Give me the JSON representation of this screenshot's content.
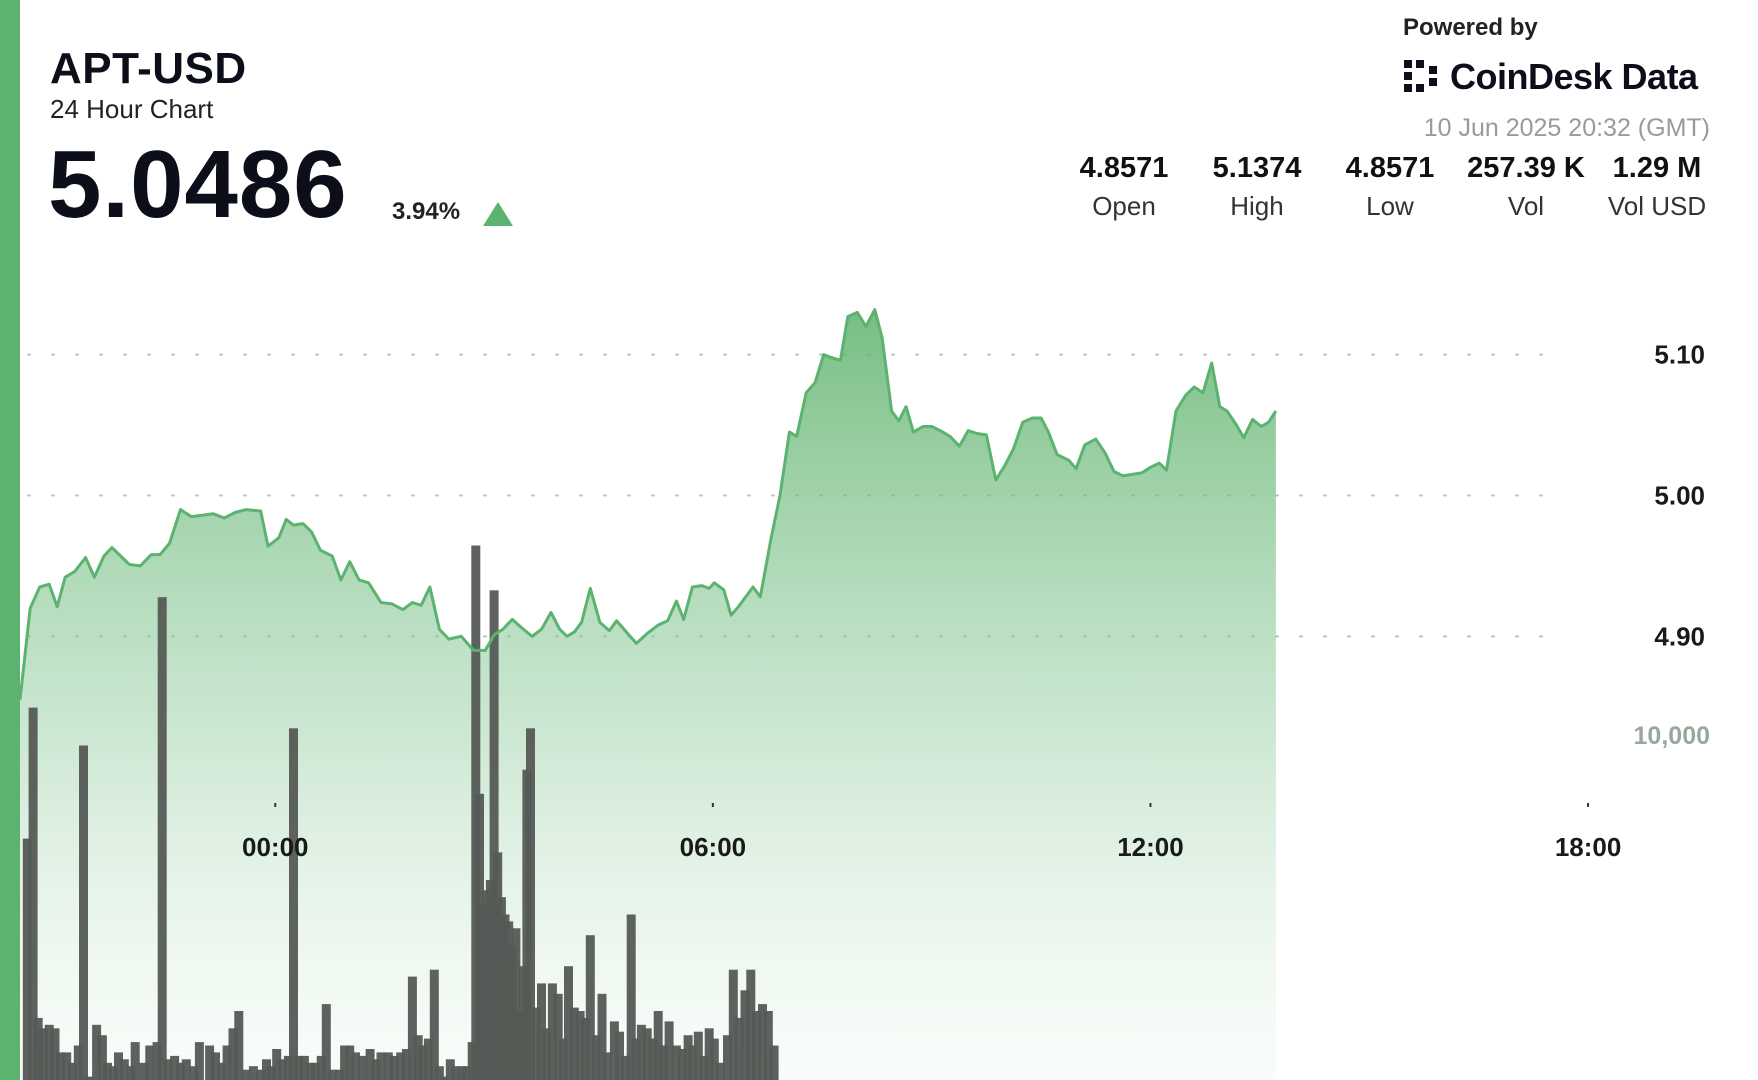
{
  "header": {
    "symbol": "APT-USD",
    "subtitle": "24 Hour Chart",
    "price": "5.0486",
    "change": "3.94%"
  },
  "branding": {
    "powered_by": "Powered by",
    "name": "CoinDesk Data",
    "timestamp": "10 Jun 2025 20:32 (GMT)"
  },
  "stats": [
    {
      "value": "4.8571",
      "label": "Open"
    },
    {
      "value": "5.1374",
      "label": "High"
    },
    {
      "value": "4.8571",
      "label": "Low"
    },
    {
      "value": "257.39 K",
      "label": "Vol"
    },
    {
      "value": "1.29 M",
      "label": "Vol USD"
    }
  ],
  "colors": {
    "accent": "#5cb36f",
    "line": "#5cb36f",
    "fill_top": "#5fb36e",
    "volume_bar": "#555a55",
    "text": "#111111",
    "muted": "#9a9a9a"
  },
  "chart_data": {
    "type": "area",
    "price_axis": {
      "range": [
        4.82,
        5.175
      ],
      "ticks": [
        4.9,
        5.0,
        5.1
      ],
      "tick_labels": [
        "4.90",
        "5.00",
        "5.10"
      ],
      "side": "right",
      "grid": "dotted"
    },
    "volume_axis": {
      "ticks": [
        10000
      ],
      "tick_labels": [
        "10,000"
      ],
      "max": 14500
    },
    "x_axis": {
      "ticks": [
        "00:00",
        "06:00",
        "12:00",
        "18:00"
      ],
      "tick_positions": [
        3,
        9,
        15,
        21
      ],
      "range": [
        -0.5,
        23.33
      ]
    },
    "price_series": [
      [
        -0.5,
        4.855
      ],
      [
        -0.36,
        4.92
      ],
      [
        -0.23,
        4.935
      ],
      [
        -0.1,
        4.937
      ],
      [
        0.01,
        4.921
      ],
      [
        0.12,
        4.942
      ],
      [
        0.25,
        4.946
      ],
      [
        0.4,
        4.956
      ],
      [
        0.52,
        4.942
      ],
      [
        0.65,
        4.957
      ],
      [
        0.76,
        4.963
      ],
      [
        0.88,
        4.957
      ],
      [
        1.0,
        4.951
      ],
      [
        1.15,
        4.95
      ],
      [
        1.3,
        4.958
      ],
      [
        1.42,
        4.958
      ],
      [
        1.55,
        4.966
      ],
      [
        1.7,
        4.99
      ],
      [
        1.85,
        4.985
      ],
      [
        2.0,
        4.986
      ],
      [
        2.15,
        4.987
      ],
      [
        2.3,
        4.984
      ],
      [
        2.45,
        4.988
      ],
      [
        2.6,
        4.99
      ],
      [
        2.8,
        4.989
      ],
      [
        2.9,
        4.964
      ],
      [
        3.05,
        4.97
      ],
      [
        3.15,
        4.983
      ],
      [
        3.25,
        4.979
      ],
      [
        3.38,
        4.98
      ],
      [
        3.5,
        4.974
      ],
      [
        3.62,
        4.961
      ],
      [
        3.78,
        4.957
      ],
      [
        3.9,
        4.94
      ],
      [
        4.02,
        4.953
      ],
      [
        4.15,
        4.94
      ],
      [
        4.28,
        4.938
      ],
      [
        4.45,
        4.924
      ],
      [
        4.6,
        4.923
      ],
      [
        4.75,
        4.919
      ],
      [
        4.88,
        4.924
      ],
      [
        5.0,
        4.922
      ],
      [
        5.12,
        4.935
      ],
      [
        5.25,
        4.905
      ],
      [
        5.38,
        4.898
      ],
      [
        5.55,
        4.9
      ],
      [
        5.72,
        4.89
      ],
      [
        5.88,
        4.89
      ],
      [
        6.0,
        4.901
      ],
      [
        6.12,
        4.905
      ],
      [
        6.25,
        4.912
      ],
      [
        6.38,
        4.906
      ],
      [
        6.52,
        4.9
      ],
      [
        6.65,
        4.905
      ],
      [
        6.78,
        4.917
      ],
      [
        6.9,
        4.905
      ],
      [
        7.0,
        4.9
      ],
      [
        7.1,
        4.903
      ],
      [
        7.2,
        4.91
      ],
      [
        7.32,
        4.934
      ],
      [
        7.45,
        4.91
      ],
      [
        7.58,
        4.904
      ],
      [
        7.68,
        4.911
      ],
      [
        7.8,
        4.904
      ],
      [
        7.95,
        4.895
      ],
      [
        8.1,
        4.902
      ],
      [
        8.25,
        4.908
      ],
      [
        8.38,
        4.911
      ],
      [
        8.5,
        4.925
      ],
      [
        8.6,
        4.912
      ],
      [
        8.72,
        4.935
      ],
      [
        8.85,
        4.936
      ],
      [
        8.95,
        4.934
      ],
      [
        9.02,
        4.938
      ],
      [
        9.15,
        4.933
      ],
      [
        9.25,
        4.915
      ],
      [
        9.35,
        4.921
      ],
      [
        9.45,
        4.928
      ],
      [
        9.55,
        4.935
      ],
      [
        9.65,
        4.928
      ],
      [
        9.8,
        4.97
      ],
      [
        9.92,
        5.0
      ],
      [
        10.05,
        5.045
      ],
      [
        10.15,
        5.042
      ],
      [
        10.28,
        5.073
      ],
      [
        10.4,
        5.08
      ],
      [
        10.52,
        5.1
      ],
      [
        10.62,
        5.098
      ],
      [
        10.75,
        5.096
      ],
      [
        10.85,
        5.127
      ],
      [
        10.98,
        5.13
      ],
      [
        11.1,
        5.12
      ],
      [
        11.22,
        5.132
      ],
      [
        11.32,
        5.112
      ],
      [
        11.45,
        5.06
      ],
      [
        11.55,
        5.053
      ],
      [
        11.65,
        5.063
      ],
      [
        11.75,
        5.045
      ],
      [
        11.88,
        5.049
      ],
      [
        12.0,
        5.049
      ],
      [
        12.12,
        5.046
      ],
      [
        12.25,
        5.042
      ],
      [
        12.38,
        5.035
      ],
      [
        12.5,
        5.046
      ],
      [
        12.62,
        5.044
      ],
      [
        12.75,
        5.043
      ],
      [
        12.88,
        5.011
      ],
      [
        13.0,
        5.021
      ],
      [
        13.12,
        5.033
      ],
      [
        13.25,
        5.052
      ],
      [
        13.38,
        5.055
      ],
      [
        13.5,
        5.055
      ],
      [
        13.6,
        5.045
      ],
      [
        13.72,
        5.029
      ],
      [
        13.88,
        5.025
      ],
      [
        13.98,
        5.019
      ],
      [
        14.1,
        5.036
      ],
      [
        14.25,
        5.04
      ],
      [
        14.38,
        5.03
      ],
      [
        14.5,
        5.017
      ],
      [
        14.62,
        5.014
      ],
      [
        14.75,
        5.015
      ],
      [
        14.88,
        5.016
      ],
      [
        15.0,
        5.02
      ],
      [
        15.12,
        5.023
      ],
      [
        15.22,
        5.018
      ],
      [
        15.35,
        5.06
      ],
      [
        15.48,
        5.071
      ],
      [
        15.6,
        5.077
      ],
      [
        15.72,
        5.073
      ],
      [
        15.84,
        5.094
      ],
      [
        15.95,
        5.063
      ],
      [
        16.05,
        5.06
      ],
      [
        16.18,
        5.05
      ],
      [
        16.28,
        5.041
      ],
      [
        16.4,
        5.054
      ],
      [
        16.52,
        5.049
      ],
      [
        16.62,
        5.052
      ],
      [
        16.72,
        5.06
      ]
    ],
    "volume_series": [
      [
        -0.4,
        7000
      ],
      [
        -0.32,
        10800
      ],
      [
        -0.25,
        1800
      ],
      [
        -0.18,
        1500
      ],
      [
        -0.1,
        1600
      ],
      [
        -0.02,
        1500
      ],
      [
        0.06,
        800
      ],
      [
        0.14,
        800
      ],
      [
        0.22,
        500
      ],
      [
        0.3,
        1000
      ],
      [
        0.37,
        9700
      ],
      [
        0.45,
        100
      ],
      [
        0.55,
        1600
      ],
      [
        0.63,
        1300
      ],
      [
        0.7,
        500
      ],
      [
        0.78,
        400
      ],
      [
        0.85,
        800
      ],
      [
        0.93,
        600
      ],
      [
        1.02,
        400
      ],
      [
        1.08,
        1100
      ],
      [
        1.2,
        500
      ],
      [
        1.28,
        1000
      ],
      [
        1.38,
        1100
      ],
      [
        1.45,
        14000
      ],
      [
        1.53,
        600
      ],
      [
        1.62,
        700
      ],
      [
        1.7,
        500
      ],
      [
        1.78,
        600
      ],
      [
        1.88,
        400
      ],
      [
        1.96,
        1100
      ],
      [
        2.1,
        1000
      ],
      [
        2.18,
        800
      ],
      [
        2.26,
        500
      ],
      [
        2.34,
        1000
      ],
      [
        2.42,
        1500
      ],
      [
        2.5,
        2000
      ],
      [
        2.6,
        300
      ],
      [
        2.7,
        400
      ],
      [
        2.8,
        300
      ],
      [
        2.88,
        600
      ],
      [
        2.95,
        400
      ],
      [
        3.02,
        900
      ],
      [
        3.1,
        600
      ],
      [
        3.18,
        700
      ],
      [
        3.25,
        10200
      ],
      [
        3.32,
        700
      ],
      [
        3.4,
        700
      ],
      [
        3.48,
        500
      ],
      [
        3.55,
        500
      ],
      [
        3.63,
        700
      ],
      [
        3.7,
        2200
      ],
      [
        3.78,
        300
      ],
      [
        3.88,
        300
      ],
      [
        3.95,
        1000
      ],
      [
        4.02,
        1000
      ],
      [
        4.1,
        800
      ],
      [
        4.2,
        700
      ],
      [
        4.3,
        900
      ],
      [
        4.38,
        600
      ],
      [
        4.45,
        800
      ],
      [
        4.55,
        800
      ],
      [
        4.63,
        700
      ],
      [
        4.72,
        800
      ],
      [
        4.8,
        900
      ],
      [
        4.88,
        3000
      ],
      [
        4.96,
        1300
      ],
      [
        5.02,
        1000
      ],
      [
        5.1,
        1200
      ],
      [
        5.18,
        3200
      ],
      [
        5.25,
        400
      ],
      [
        5.32,
        100
      ],
      [
        5.4,
        600
      ],
      [
        5.48,
        400
      ],
      [
        5.56,
        400
      ],
      [
        5.62,
        400
      ],
      [
        5.7,
        1100
      ],
      [
        5.75,
        15500
      ],
      [
        5.8,
        8300
      ],
      [
        5.85,
        5100
      ],
      [
        5.9,
        5500
      ],
      [
        5.95,
        5800
      ],
      [
        6.0,
        14200
      ],
      [
        6.05,
        6600
      ],
      [
        6.1,
        5300
      ],
      [
        6.15,
        4800
      ],
      [
        6.2,
        4600
      ],
      [
        6.25,
        3900
      ],
      [
        6.3,
        4400
      ],
      [
        6.35,
        2000
      ],
      [
        6.4,
        3300
      ],
      [
        6.45,
        9000
      ],
      [
        6.5,
        10200
      ],
      [
        6.58,
        2100
      ],
      [
        6.65,
        2800
      ],
      [
        6.72,
        1500
      ],
      [
        6.8,
        2800
      ],
      [
        6.88,
        2500
      ],
      [
        6.95,
        1200
      ],
      [
        7.02,
        3300
      ],
      [
        7.1,
        2100
      ],
      [
        7.18,
        2000
      ],
      [
        7.25,
        1800
      ],
      [
        7.32,
        4200
      ],
      [
        7.4,
        1300
      ],
      [
        7.48,
        2500
      ],
      [
        7.55,
        800
      ],
      [
        7.65,
        1700
      ],
      [
        7.72,
        1400
      ],
      [
        7.8,
        700
      ],
      [
        7.88,
        4800
      ],
      [
        7.95,
        1200
      ],
      [
        8.02,
        1600
      ],
      [
        8.1,
        1500
      ],
      [
        8.18,
        1200
      ],
      [
        8.25,
        2000
      ],
      [
        8.32,
        1000
      ],
      [
        8.4,
        1700
      ],
      [
        8.5,
        1000
      ],
      [
        8.58,
        900
      ],
      [
        8.66,
        1300
      ],
      [
        8.72,
        1000
      ],
      [
        8.8,
        1400
      ],
      [
        8.88,
        700
      ],
      [
        8.95,
        1500
      ],
      [
        9.02,
        1200
      ],
      [
        9.1,
        500
      ],
      [
        9.2,
        1300
      ],
      [
        9.28,
        3200
      ],
      [
        9.36,
        1800
      ],
      [
        9.44,
        2600
      ],
      [
        9.52,
        3200
      ],
      [
        9.6,
        2000
      ],
      [
        9.68,
        2200
      ],
      [
        9.76,
        2000
      ],
      [
        9.84,
        1000
      ]
    ]
  }
}
